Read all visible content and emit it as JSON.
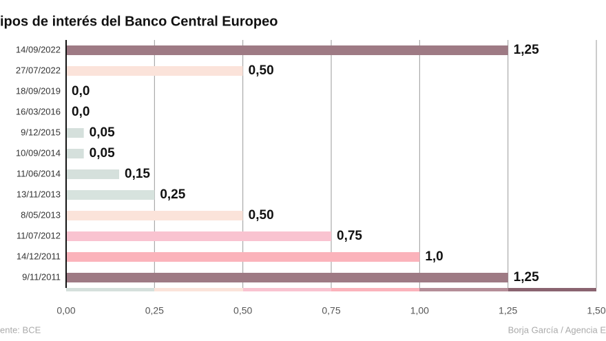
{
  "chart_data": {
    "type": "hbar",
    "title": "ipos de interés del Banco Central Europeo",
    "source": "ente: BCE",
    "credit": "Borja García / Agencia E",
    "categories": [
      "14/09/2022",
      "27/07/2022",
      "18/09/2019",
      "16/03/2016",
      "9/12/2015",
      "10/09/2014",
      "11/06/2014",
      "13/11/2013",
      "8/05/2013",
      "11/07/2012",
      "14/12/2011",
      "9/11/2011"
    ],
    "values": [
      1.25,
      0.5,
      0,
      0,
      0.05,
      0.05,
      0.15,
      0.25,
      0.5,
      0.75,
      1.0,
      1.25
    ],
    "value_labels": [
      "1,25",
      "0,50",
      "0,0",
      "0,0",
      "0,05",
      "0,05",
      "0,15",
      "0,25",
      "0,50",
      "0,75",
      "1,0",
      "1,25"
    ],
    "colors": [
      "#9e7a84",
      "#fbe3da",
      "#d5e0dc",
      "#d5e0dc",
      "#d5e0dc",
      "#d5e0dc",
      "#d5e0dc",
      "#d7e3de",
      "#fbe3da",
      "#f9c3d0",
      "#fbb3bb",
      "#9e7a84"
    ],
    "xlim": [
      0,
      1.5
    ],
    "xticks": [
      {
        "value": 0,
        "label": "0,00"
      },
      {
        "value": 0.25,
        "label": "0,25"
      },
      {
        "value": 0.5,
        "label": "0,50"
      },
      {
        "value": 0.75,
        "label": "0,75"
      },
      {
        "value": 1.0,
        "label": "1,00"
      },
      {
        "value": 1.25,
        "label": "1,25"
      },
      {
        "value": 1.5,
        "label": "1,50"
      }
    ],
    "grid": true
  }
}
